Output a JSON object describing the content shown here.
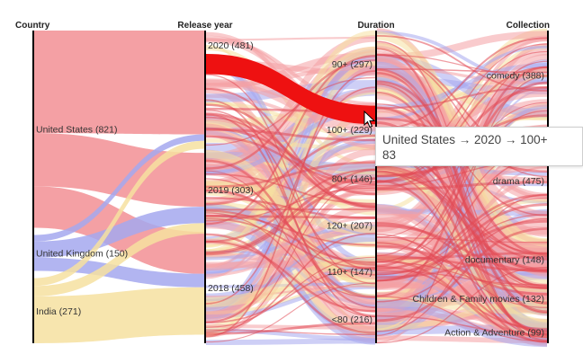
{
  "chart_data": {
    "type": "parallel-sets",
    "dimensions": [
      {
        "name": "Country",
        "categories": [
          {
            "label": "United States",
            "count": 821
          },
          {
            "label": "United Kingdom",
            "count": 150
          },
          {
            "label": "India",
            "count": 271
          }
        ]
      },
      {
        "name": "Release year",
        "categories": [
          {
            "label": "2020",
            "count": 481
          },
          {
            "label": "2019",
            "count": 303
          },
          {
            "label": "2018",
            "count": 458
          }
        ]
      },
      {
        "name": "Duration",
        "categories": [
          {
            "label": "90+",
            "count": 297
          },
          {
            "label": "100+",
            "count": 229
          },
          {
            "label": "80+",
            "count": 146
          },
          {
            "label": "120+",
            "count": 207
          },
          {
            "label": "110+",
            "count": 147
          },
          {
            "label": "<80",
            "count": 216
          }
        ]
      },
      {
        "name": "Collection",
        "categories": [
          {
            "label": "comedy",
            "count": 388
          },
          {
            "label": "drama",
            "count": 475
          },
          {
            "label": "documentary",
            "count": 148
          },
          {
            "label": "Children & Family movies",
            "count": 132
          },
          {
            "label": "Action & Adventure",
            "count": 99
          }
        ]
      }
    ],
    "colors": {
      "United States": "#f4a0a4",
      "United Kingdom": "#a5a8ef",
      "India": "#f6e0a0",
      "highlight": "#ee1111"
    },
    "highlighted_flow": {
      "path": [
        "United States",
        "2020",
        "100+"
      ],
      "count": 83
    }
  },
  "tooltip": {
    "path_text": "United States → 2020 → 100+",
    "count_text": "83"
  }
}
